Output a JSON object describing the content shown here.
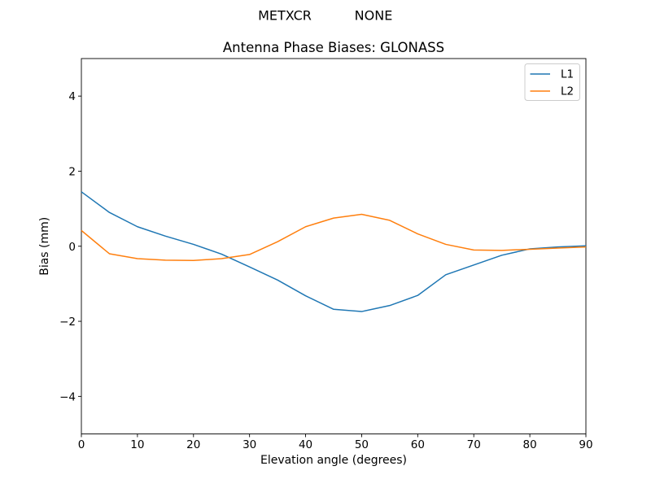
{
  "header": {
    "station": "METXCR",
    "mode": "NONE"
  },
  "chart_data": {
    "type": "line",
    "title": "Antenna Phase Biases: GLONASS",
    "xlabel": "Elevation angle (degrees)",
    "ylabel": "Bias (mm)",
    "xlim": [
      0,
      90
    ],
    "ylim": [
      -5,
      5
    ],
    "grid": false,
    "legend_position": "upper right",
    "x_ticks": [
      0,
      10,
      20,
      30,
      40,
      50,
      60,
      70,
      80,
      90
    ],
    "x_tick_labels": [
      "0",
      "10",
      "20",
      "30",
      "40",
      "50",
      "60",
      "70",
      "80",
      "90"
    ],
    "y_ticks": [
      -4,
      -2,
      0,
      2,
      4
    ],
    "y_tick_labels": [
      "−4",
      "−2",
      "0",
      "2",
      "4"
    ],
    "x": [
      0,
      5,
      10,
      15,
      20,
      25,
      30,
      35,
      40,
      45,
      50,
      55,
      60,
      65,
      70,
      75,
      80,
      85,
      90
    ],
    "series": [
      {
        "name": "L1",
        "color": "#1f77b4",
        "values": [
          1.45,
          0.9,
          0.52,
          0.27,
          0.05,
          -0.21,
          -0.55,
          -0.9,
          -1.32,
          -1.68,
          -1.74,
          -1.58,
          -1.31,
          -0.76,
          -0.5,
          -0.24,
          -0.07,
          -0.02,
          0.01
        ]
      },
      {
        "name": "L2",
        "color": "#ff7f0e",
        "values": [
          0.42,
          -0.2,
          -0.33,
          -0.37,
          -0.38,
          -0.33,
          -0.22,
          0.12,
          0.52,
          0.75,
          0.85,
          0.69,
          0.33,
          0.05,
          -0.1,
          -0.11,
          -0.08,
          -0.05,
          -0.02
        ]
      }
    ]
  }
}
